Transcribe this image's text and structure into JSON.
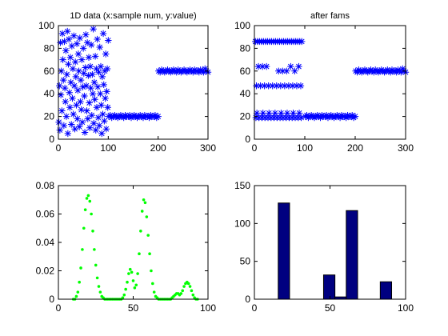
{
  "figure": {
    "background": "#ffffff"
  },
  "chart_data": [
    {
      "type": "scatter",
      "title": "1D data (x:sample num, y:value)",
      "xlim": [
        0,
        300
      ],
      "ylim": [
        0,
        100
      ],
      "xticks": [
        0,
        100,
        200,
        300
      ],
      "yticks": [
        0,
        20,
        40,
        60,
        80,
        100
      ],
      "marker": "star",
      "color": "#0000ff",
      "grid": false,
      "series": [
        {
          "x": [
            1,
            2,
            3,
            4,
            5,
            6,
            7,
            8,
            9,
            10,
            11,
            12,
            13,
            14,
            15,
            16,
            17,
            18,
            19,
            20,
            21,
            22,
            23,
            24,
            25,
            26,
            27,
            28,
            29,
            30,
            31,
            32,
            33,
            34,
            35,
            36,
            37,
            38,
            39,
            40,
            41,
            42,
            43,
            44,
            45,
            46,
            47,
            48,
            49,
            50,
            51,
            52,
            53,
            54,
            55,
            56,
            57,
            58,
            59,
            60,
            61,
            62,
            63,
            64,
            65,
            66,
            67,
            68,
            69,
            70,
            71,
            72,
            73,
            74,
            75,
            76,
            77,
            78,
            79,
            80,
            81,
            82,
            83,
            84,
            85,
            86,
            87,
            88,
            89,
            90,
            91,
            92,
            93,
            94,
            95,
            96,
            97,
            98,
            99,
            100,
            101,
            104,
            107,
            110,
            113,
            116,
            119,
            122,
            125,
            128,
            131,
            134,
            137,
            140,
            143,
            146,
            149,
            152,
            155,
            158,
            161,
            164,
            167,
            170,
            173,
            176,
            179,
            182,
            185,
            188,
            191,
            194,
            197,
            200,
            201,
            204,
            207,
            210,
            213,
            216,
            219,
            222,
            225,
            228,
            231,
            234,
            237,
            240,
            243,
            246,
            249,
            252,
            255,
            258,
            261,
            264,
            267,
            270,
            273,
            276,
            279,
            282,
            285,
            288,
            291,
            294,
            297,
            300
          ],
          "y": [
            15,
            47,
            8,
            85,
            39,
            60,
            25,
            93,
            70,
            52,
            12,
            86,
            45,
            33,
            78,
            20,
            57,
            95,
            5,
            66,
            88,
            41,
            28,
            72,
            50,
            13,
            82,
            36,
            62,
            22,
            91,
            47,
            9,
            68,
            55,
            30,
            84,
            18,
            43,
            75,
            60,
            11,
            89,
            33,
            52,
            26,
            70,
            15,
            46,
            80,
            58,
            38,
            6,
            63,
            92,
            47,
            25,
            85,
            18,
            56,
            72,
            32,
            10,
            64,
            45,
            83,
            21,
            57,
            40,
            97,
            14,
            50,
            35,
            73,
            8,
            62,
            28,
            88,
            46,
            19,
            59,
            12,
            81,
            40,
            64,
            30,
            5,
            55,
            22,
            93,
            48,
            16,
            60,
            36,
            75,
            9,
            42,
            62,
            28,
            87,
            20,
            21,
            19,
            20,
            21,
            20,
            19,
            20,
            21,
            20,
            19,
            21,
            20,
            20,
            21,
            19,
            20,
            21,
            20,
            19,
            20,
            21,
            20,
            19,
            21,
            20,
            20,
            19,
            21,
            20,
            20,
            21,
            19,
            20,
            60,
            59,
            61,
            60,
            59,
            60,
            61,
            60,
            59,
            60,
            61,
            60,
            59,
            61,
            60,
            59,
            60,
            61,
            60,
            59,
            60,
            61,
            60,
            59,
            61,
            60,
            60,
            59,
            61,
            60,
            59,
            62,
            60,
            59
          ]
        }
      ]
    },
    {
      "type": "scatter",
      "title": "after fams",
      "xlim": [
        0,
        300
      ],
      "ylim": [
        0,
        100
      ],
      "xticks": [
        0,
        100,
        200,
        300
      ],
      "yticks": [
        0,
        20,
        40,
        60,
        80,
        100
      ],
      "marker": "star",
      "color": "#0000ff",
      "grid": false,
      "series": [
        {
          "x": [
            2,
            6,
            10,
            14,
            18,
            22,
            26,
            30,
            34,
            38,
            42,
            46,
            50,
            54,
            58,
            62,
            66,
            70,
            74,
            78,
            82,
            86,
            90,
            94,
            4,
            12,
            20,
            28,
            36,
            44,
            52,
            60,
            68,
            76,
            84,
            92,
            3,
            9,
            15,
            21,
            27,
            33,
            39,
            45,
            51,
            57,
            63,
            69,
            75,
            81,
            87,
            93,
            8,
            16,
            24,
            48,
            56,
            64,
            72,
            80,
            88,
            5,
            17,
            29,
            41,
            53,
            65,
            77,
            89,
            101,
            104,
            107,
            110,
            113,
            116,
            119,
            122,
            125,
            128,
            131,
            134,
            137,
            140,
            143,
            146,
            149,
            152,
            155,
            158,
            161,
            164,
            167,
            170,
            173,
            176,
            179,
            182,
            185,
            188,
            191,
            194,
            197,
            200,
            201,
            204,
            207,
            210,
            213,
            216,
            219,
            222,
            225,
            228,
            231,
            234,
            237,
            240,
            243,
            246,
            249,
            252,
            255,
            258,
            261,
            264,
            267,
            270,
            273,
            276,
            279,
            282,
            285,
            288,
            291,
            294,
            297,
            300
          ],
          "y": [
            86,
            86,
            86,
            86,
            86,
            86,
            86,
            86,
            86,
            86,
            86,
            86,
            86,
            86,
            86,
            86,
            86,
            86,
            86,
            86,
            86,
            86,
            86,
            86,
            47,
            47,
            47,
            47,
            47,
            47,
            47,
            47,
            47,
            47,
            47,
            47,
            19,
            19,
            19,
            19,
            19,
            19,
            19,
            19,
            19,
            19,
            19,
            19,
            19,
            19,
            19,
            19,
            64,
            64,
            64,
            60,
            60,
            60,
            64,
            60,
            64,
            23,
            23,
            23,
            23,
            23,
            23,
            23,
            23,
            20,
            21,
            19,
            20,
            21,
            20,
            19,
            20,
            21,
            20,
            19,
            21,
            20,
            20,
            21,
            19,
            20,
            21,
            20,
            19,
            20,
            21,
            20,
            19,
            21,
            20,
            20,
            19,
            21,
            20,
            20,
            21,
            19,
            20,
            60,
            59,
            61,
            60,
            59,
            60,
            61,
            60,
            59,
            60,
            61,
            60,
            59,
            61,
            60,
            59,
            60,
            61,
            60,
            59,
            60,
            61,
            60,
            59,
            61,
            60,
            60,
            59,
            61,
            60,
            59,
            62,
            60,
            59
          ]
        }
      ]
    },
    {
      "type": "scatter",
      "title": "",
      "xlim": [
        0,
        100
      ],
      "ylim": [
        0,
        0.08
      ],
      "xticks": [
        0,
        50,
        100
      ],
      "yticks": [
        0,
        0.02,
        0.04,
        0.06,
        0.08
      ],
      "yticklabels": [
        "0",
        "0.02",
        "0.04",
        "0.06",
        "0.08"
      ],
      "marker": "dot",
      "color": "#00ff00",
      "grid": false,
      "series": [
        {
          "x": [
            10,
            11,
            12,
            13,
            14,
            15,
            16,
            17,
            18,
            19,
            20,
            21,
            22,
            23,
            24,
            25,
            26,
            27,
            28,
            29,
            30,
            31,
            32,
            33,
            34,
            35,
            36,
            37,
            38,
            39,
            40,
            41,
            42,
            43,
            44,
            45,
            46,
            47,
            48,
            49,
            50,
            51,
            52,
            53,
            54,
            55,
            56,
            57,
            58,
            59,
            60,
            61,
            62,
            63,
            64,
            65,
            66,
            67,
            68,
            69,
            70,
            71,
            72,
            73,
            74,
            75,
            76,
            77,
            78,
            79,
            80,
            81,
            82,
            83,
            84,
            85,
            86,
            87,
            88,
            89,
            90,
            91,
            92,
            93
          ],
          "y": [
            0,
            0,
            0.002,
            0.005,
            0.012,
            0.022,
            0.035,
            0.05,
            0.063,
            0.071,
            0.073,
            0.069,
            0.06,
            0.048,
            0.035,
            0.024,
            0.015,
            0.009,
            0.005,
            0.002,
            0.001,
            0,
            0,
            0,
            0,
            0,
            0,
            0,
            0,
            0,
            0,
            0,
            0,
            0.001,
            0.003,
            0.007,
            0.012,
            0.018,
            0.021,
            0.019,
            0.013,
            0.008,
            0.01,
            0.018,
            0.032,
            0.048,
            0.062,
            0.07,
            0.068,
            0.058,
            0.045,
            0.032,
            0.02,
            0.011,
            0.005,
            0.002,
            0.001,
            0,
            0,
            0,
            0,
            0,
            0,
            0,
            0,
            0,
            0.001,
            0.002,
            0.003,
            0.004,
            0.004,
            0.003,
            0.004,
            0.006,
            0.009,
            0.011,
            0.012,
            0.011,
            0.009,
            0.006,
            0.003,
            0.001,
            0,
            0
          ]
        }
      ]
    },
    {
      "type": "bar",
      "title": "",
      "xlim": [
        0,
        100
      ],
      "ylim": [
        0,
        150
      ],
      "xticks": [
        0,
        50,
        100
      ],
      "yticks": [
        0,
        50,
        100,
        150
      ],
      "color": "#000080",
      "edgecolor": "#000000",
      "grid": false,
      "bin_width": 7.5,
      "categories": [
        19.5,
        27.0,
        34.5,
        42.0,
        49.5,
        57.0,
        64.5,
        72.0,
        79.5,
        87.0
      ],
      "values": [
        127,
        0,
        0,
        0,
        32,
        3,
        117,
        0,
        0,
        23
      ]
    }
  ]
}
